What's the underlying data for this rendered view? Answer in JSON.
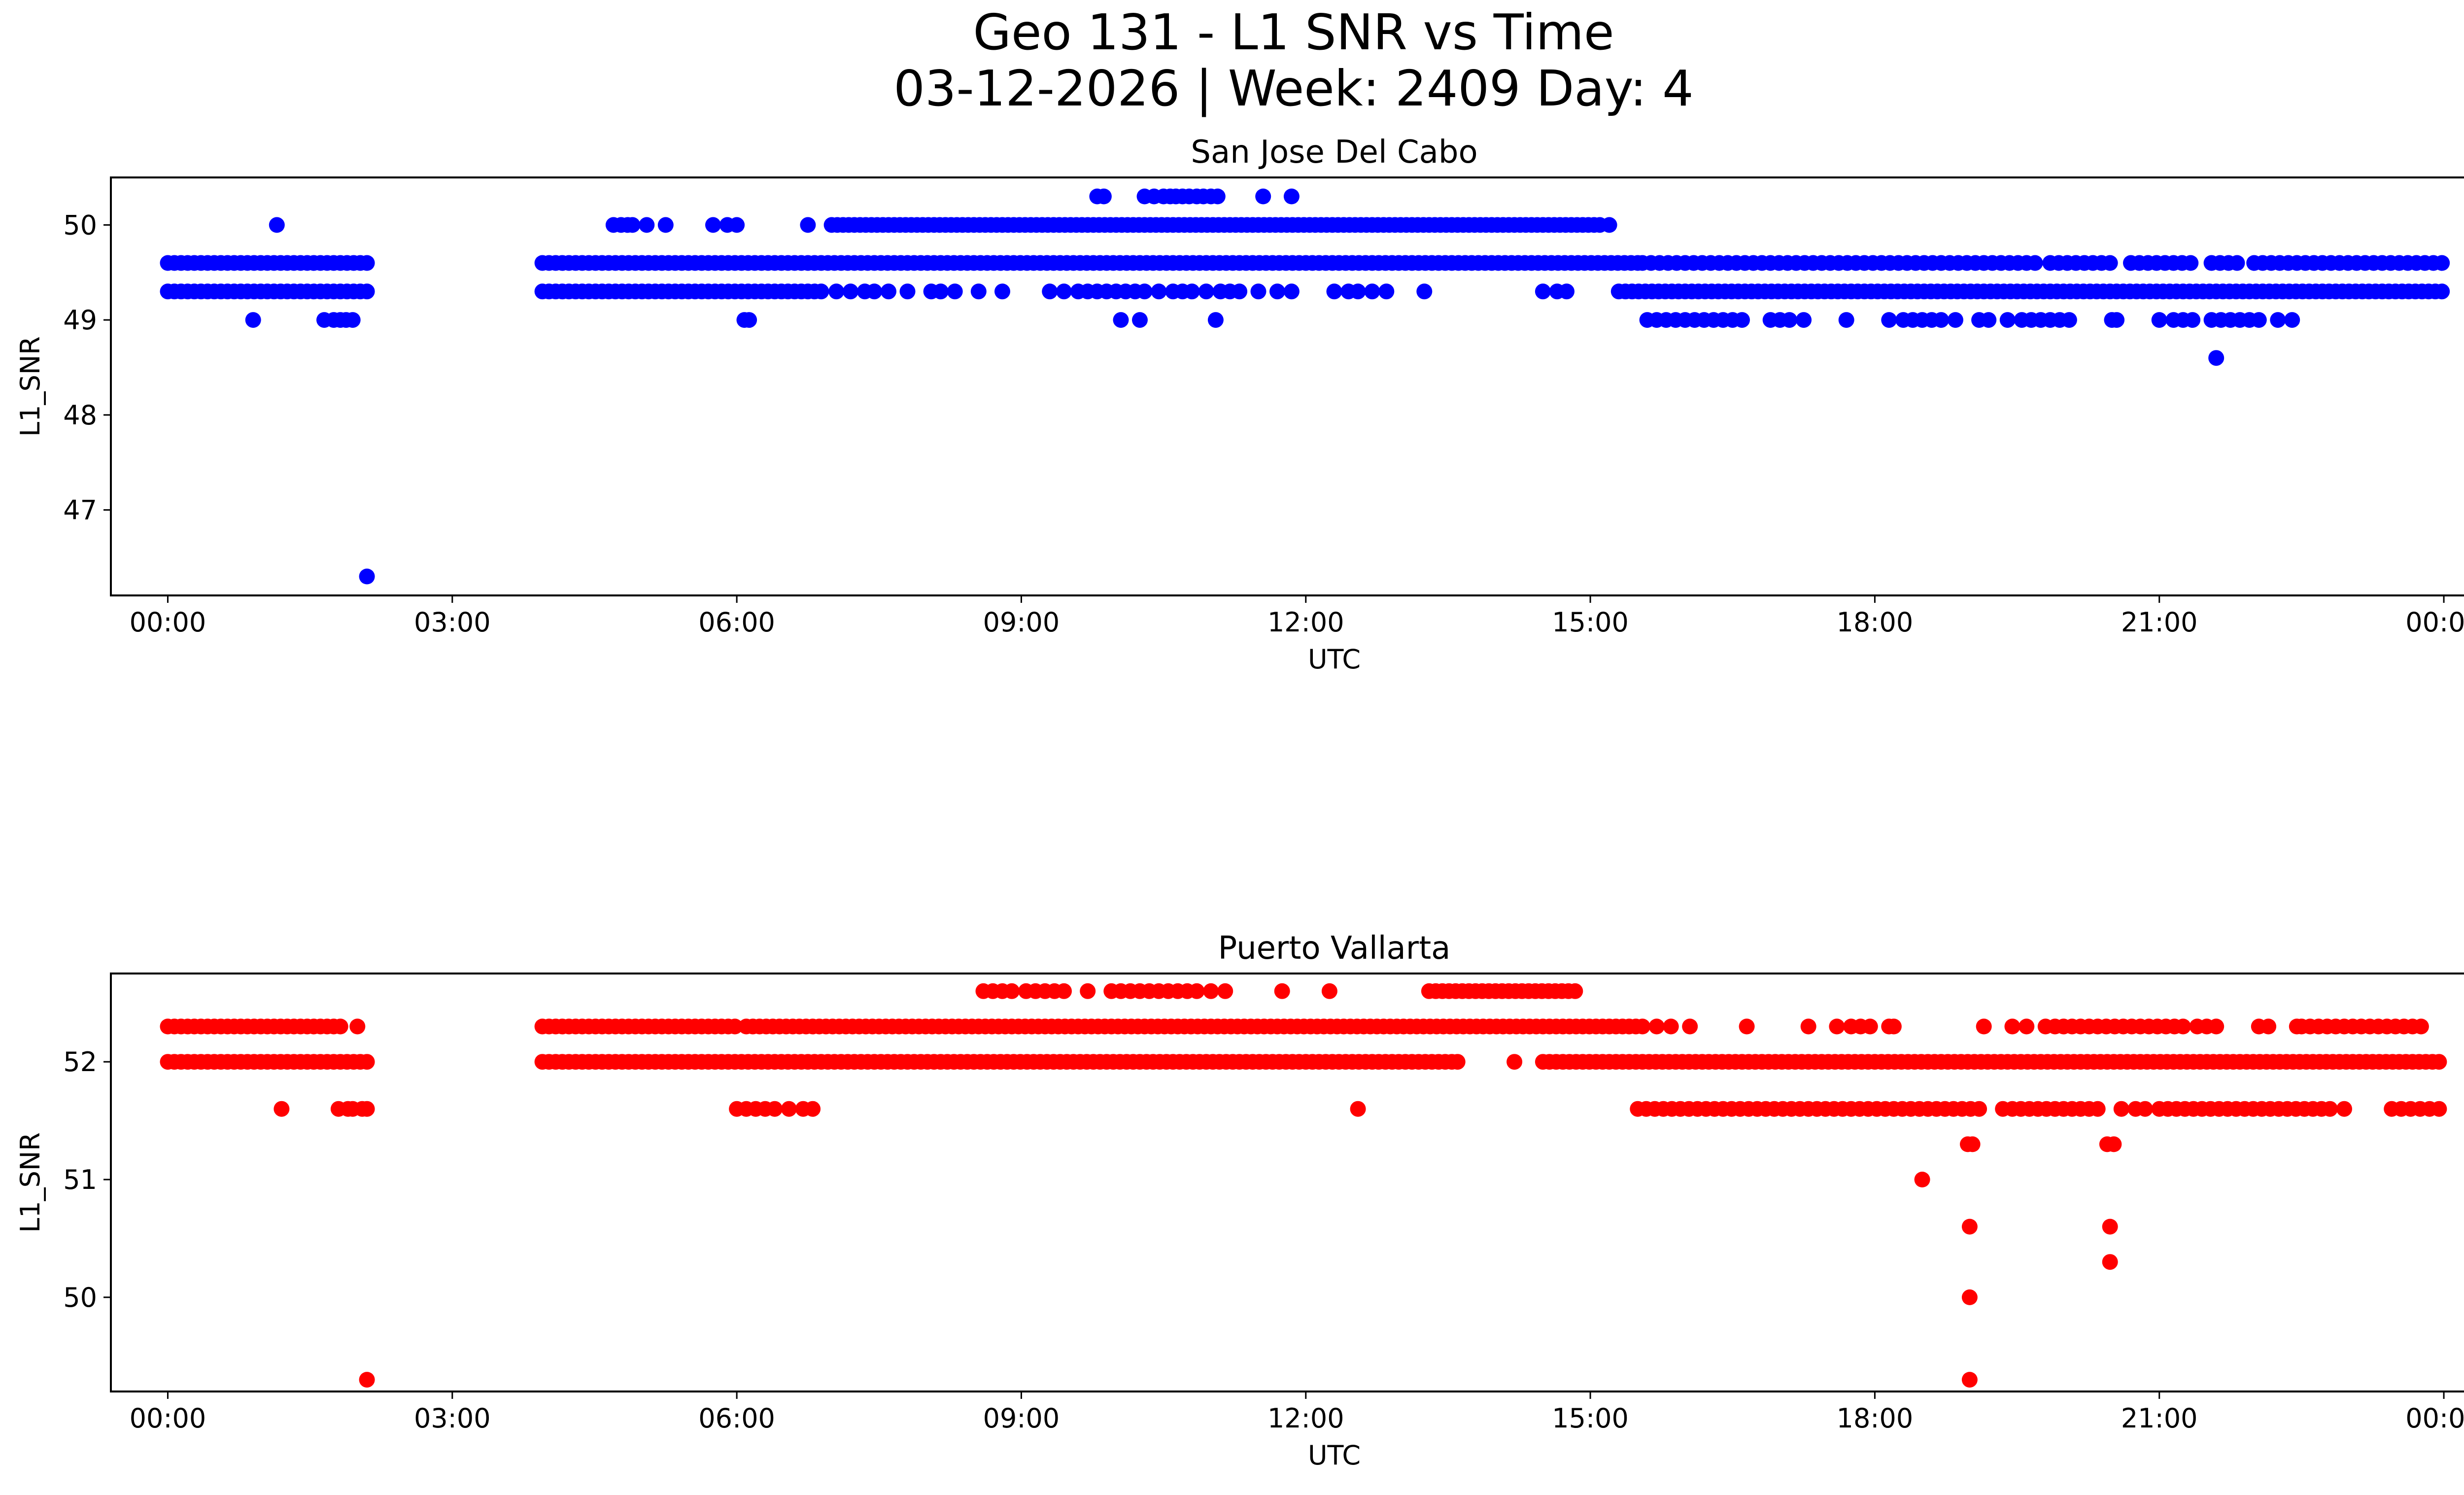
{
  "title": {
    "line1": "Geo 131 - L1 SNR vs Time",
    "line2": "03-12-2026 | Week: 2409 Day: 4"
  },
  "chart_data": [
    {
      "type": "scatter",
      "title": "San Jose Del Cabo",
      "xlabel": "UTC",
      "ylabel": "L1_SNR",
      "color": "#0000ff",
      "xlim": [
        -0.6,
        25.2
      ],
      "ylim": [
        46.1,
        50.5
      ],
      "xticks": [
        0,
        3,
        6,
        9,
        12,
        15,
        18,
        21,
        24
      ],
      "xtick_labels": [
        "00:00",
        "03:00",
        "06:00",
        "09:00",
        "12:00",
        "15:00",
        "18:00",
        "21:00",
        "00:00"
      ],
      "yticks": [
        47,
        48,
        49,
        50
      ],
      "ytick_labels": [
        "47",
        "48",
        "49",
        "50"
      ],
      "bands": [
        {
          "y": 49.6,
          "ranges": [
            [
              0.0,
              2.15
            ],
            [
              3.95,
              15.5
            ]
          ],
          "step": 0.07
        },
        {
          "y": 49.6,
          "ranges": [
            [
              15.55,
              19.7
            ],
            [
              19.85,
              20.5
            ],
            [
              20.7,
              21.4
            ],
            [
              21.55,
              21.85
            ],
            [
              22.0,
              24.0
            ]
          ],
          "step": 0.09
        },
        {
          "y": 49.3,
          "ranges": [
            [
              0.0,
              2.15
            ],
            [
              3.95,
              6.9
            ],
            [
              15.3,
              24.0
            ]
          ],
          "step": 0.07
        },
        {
          "y": 50.0,
          "ranges": [
            [
              7.0,
              15.1
            ]
          ],
          "step": 0.06
        }
      ],
      "points": [
        [
          0.9,
          49.0
        ],
        [
          1.15,
          50.0
        ],
        [
          1.65,
          49.0
        ],
        [
          1.75,
          49.0
        ],
        [
          1.82,
          49.0
        ],
        [
          1.88,
          49.0
        ],
        [
          1.95,
          49.0
        ],
        [
          2.1,
          46.3
        ],
        [
          4.7,
          50.0
        ],
        [
          4.78,
          50.0
        ],
        [
          4.85,
          50.0
        ],
        [
          4.9,
          50.0
        ],
        [
          5.05,
          50.0
        ],
        [
          5.25,
          50.0
        ],
        [
          5.75,
          50.0
        ],
        [
          5.9,
          50.0
        ],
        [
          6.0,
          50.0
        ],
        [
          6.75,
          50.0
        ],
        [
          6.08,
          49.0
        ],
        [
          6.13,
          49.0
        ],
        [
          7.05,
          49.3
        ],
        [
          7.2,
          49.3
        ],
        [
          7.35,
          49.3
        ],
        [
          7.45,
          49.3
        ],
        [
          7.6,
          49.3
        ],
        [
          7.8,
          49.3
        ],
        [
          8.05,
          49.3
        ],
        [
          8.15,
          49.3
        ],
        [
          8.3,
          49.3
        ],
        [
          8.55,
          49.3
        ],
        [
          8.8,
          49.3
        ],
        [
          9.3,
          49.3
        ],
        [
          9.45,
          49.3
        ],
        [
          9.6,
          49.3
        ],
        [
          9.7,
          49.3
        ],
        [
          9.8,
          49.3
        ],
        [
          9.9,
          49.3
        ],
        [
          10.0,
          49.3
        ],
        [
          10.1,
          49.3
        ],
        [
          10.2,
          49.3
        ],
        [
          10.3,
          49.3
        ],
        [
          10.45,
          49.3
        ],
        [
          10.6,
          49.3
        ],
        [
          10.7,
          49.3
        ],
        [
          10.8,
          49.3
        ],
        [
          10.95,
          49.3
        ],
        [
          11.1,
          49.3
        ],
        [
          11.2,
          49.3
        ],
        [
          11.3,
          49.3
        ],
        [
          11.5,
          49.3
        ],
        [
          11.7,
          49.3
        ],
        [
          11.85,
          49.3
        ],
        [
          12.3,
          49.3
        ],
        [
          12.45,
          49.3
        ],
        [
          12.55,
          49.3
        ],
        [
          12.7,
          49.3
        ],
        [
          12.85,
          49.3
        ],
        [
          13.25,
          49.3
        ],
        [
          14.5,
          49.3
        ],
        [
          14.65,
          49.3
        ],
        [
          14.75,
          49.3
        ],
        [
          10.05,
          49.0
        ],
        [
          10.25,
          49.0
        ],
        [
          11.05,
          49.0
        ],
        [
          9.8,
          50.3
        ],
        [
          9.87,
          50.3
        ],
        [
          10.3,
          50.3
        ],
        [
          10.4,
          50.3
        ],
        [
          10.5,
          50.3
        ],
        [
          10.57,
          50.3
        ],
        [
          10.63,
          50.3
        ],
        [
          10.7,
          50.3
        ],
        [
          10.77,
          50.3
        ],
        [
          10.85,
          50.3
        ],
        [
          10.92,
          50.3
        ],
        [
          11.0,
          50.3
        ],
        [
          11.07,
          50.3
        ],
        [
          11.55,
          50.3
        ],
        [
          11.85,
          50.3
        ],
        [
          15.2,
          50.0
        ],
        [
          15.6,
          49.0
        ],
        [
          15.7,
          49.0
        ],
        [
          15.8,
          49.0
        ],
        [
          15.9,
          49.0
        ],
        [
          16.0,
          49.0
        ],
        [
          16.1,
          49.0
        ],
        [
          16.2,
          49.0
        ],
        [
          16.3,
          49.0
        ],
        [
          16.4,
          49.0
        ],
        [
          16.5,
          49.0
        ],
        [
          16.6,
          49.0
        ],
        [
          16.9,
          49.0
        ],
        [
          17.0,
          49.0
        ],
        [
          17.1,
          49.0
        ],
        [
          17.25,
          49.0
        ],
        [
          17.7,
          49.0
        ],
        [
          18.15,
          49.0
        ],
        [
          18.3,
          49.0
        ],
        [
          18.4,
          49.0
        ],
        [
          18.5,
          49.0
        ],
        [
          18.6,
          49.0
        ],
        [
          18.7,
          49.0
        ],
        [
          18.85,
          49.0
        ],
        [
          19.1,
          49.0
        ],
        [
          19.2,
          49.0
        ],
        [
          19.4,
          49.0
        ],
        [
          19.55,
          49.0
        ],
        [
          19.65,
          49.0
        ],
        [
          19.75,
          49.0
        ],
        [
          19.85,
          49.0
        ],
        [
          19.95,
          49.0
        ],
        [
          20.05,
          49.0
        ],
        [
          20.5,
          49.0
        ],
        [
          20.55,
          49.0
        ],
        [
          21.0,
          49.0
        ],
        [
          21.15,
          49.0
        ],
        [
          21.25,
          49.0
        ],
        [
          21.35,
          49.0
        ],
        [
          21.55,
          49.0
        ],
        [
          21.65,
          49.0
        ],
        [
          21.75,
          49.0
        ],
        [
          21.85,
          49.0
        ],
        [
          21.95,
          49.0
        ],
        [
          22.05,
          49.0
        ],
        [
          22.25,
          49.0
        ],
        [
          22.4,
          49.0
        ],
        [
          21.6,
          48.6
        ]
      ]
    },
    {
      "type": "scatter",
      "title": "Puerto Vallarta",
      "xlabel": "UTC",
      "ylabel": "L1_SNR",
      "color": "#ff0000",
      "xlim": [
        -0.6,
        25.2
      ],
      "ylim": [
        49.2,
        52.75
      ],
      "xticks": [
        0,
        3,
        6,
        9,
        12,
        15,
        18,
        21,
        24
      ],
      "xtick_labels": [
        "00:00",
        "03:00",
        "06:00",
        "09:00",
        "12:00",
        "15:00",
        "18:00",
        "21:00",
        "00:00"
      ],
      "yticks": [
        50,
        51,
        52
      ],
      "ytick_labels": [
        "50",
        "51",
        "52"
      ],
      "bands": [
        {
          "y": 52.3,
          "ranges": [
            [
              0.0,
              1.85
            ],
            [
              3.95,
              6.0
            ],
            [
              6.1,
              15.6
            ]
          ],
          "step": 0.07
        },
        {
          "y": 52.3,
          "ranges": [
            [
              19.9,
              21.3
            ],
            [
              22.5,
              23.8
            ]
          ],
          "step": 0.09
        },
        {
          "y": 52.0,
          "ranges": [
            [
              0.0,
              2.15
            ],
            [
              3.95,
              13.6
            ],
            [
              14.5,
              24.0
            ]
          ],
          "step": 0.07
        },
        {
          "y": 51.6,
          "ranges": [
            [
              15.5,
              19.15
            ],
            [
              19.45,
              20.4
            ],
            [
              21.0,
              22.8
            ]
          ],
          "step": 0.09
        },
        {
          "y": 52.6,
          "ranges": [
            [
              13.3,
              14.9
            ]
          ],
          "step": 0.07
        }
      ],
      "points": [
        [
          2.0,
          52.3
        ],
        [
          1.2,
          51.6
        ],
        [
          1.8,
          51.6
        ],
        [
          1.9,
          51.6
        ],
        [
          1.95,
          51.6
        ],
        [
          2.05,
          51.6
        ],
        [
          2.1,
          51.6
        ],
        [
          2.1,
          49.3
        ],
        [
          6.0,
          51.6
        ],
        [
          6.1,
          51.6
        ],
        [
          6.2,
          51.6
        ],
        [
          6.3,
          51.6
        ],
        [
          6.4,
          51.6
        ],
        [
          6.55,
          51.6
        ],
        [
          6.7,
          51.6
        ],
        [
          6.8,
          51.6
        ],
        [
          8.6,
          52.6
        ],
        [
          8.7,
          52.6
        ],
        [
          8.8,
          52.6
        ],
        [
          8.9,
          52.6
        ],
        [
          9.05,
          52.6
        ],
        [
          9.15,
          52.6
        ],
        [
          9.25,
          52.6
        ],
        [
          9.35,
          52.6
        ],
        [
          9.45,
          52.6
        ],
        [
          9.7,
          52.6
        ],
        [
          9.95,
          52.6
        ],
        [
          10.05,
          52.6
        ],
        [
          10.15,
          52.6
        ],
        [
          10.25,
          52.6
        ],
        [
          10.35,
          52.6
        ],
        [
          10.45,
          52.6
        ],
        [
          10.55,
          52.6
        ],
        [
          10.65,
          52.6
        ],
        [
          10.75,
          52.6
        ],
        [
          10.85,
          52.6
        ],
        [
          11.0,
          52.6
        ],
        [
          11.15,
          52.6
        ],
        [
          11.75,
          52.6
        ],
        [
          12.25,
          52.6
        ],
        [
          12.55,
          51.6
        ],
        [
          13.6,
          52.0
        ],
        [
          14.2,
          52.0
        ],
        [
          15.7,
          52.3
        ],
        [
          15.85,
          52.3
        ],
        [
          16.05,
          52.3
        ],
        [
          16.65,
          52.3
        ],
        [
          17.3,
          52.3
        ],
        [
          17.6,
          52.3
        ],
        [
          17.75,
          52.3
        ],
        [
          17.85,
          52.3
        ],
        [
          17.95,
          52.3
        ],
        [
          18.15,
          52.3
        ],
        [
          18.2,
          52.3
        ],
        [
          19.15,
          52.3
        ],
        [
          19.45,
          52.3
        ],
        [
          19.6,
          52.3
        ],
        [
          19.8,
          52.3
        ],
        [
          21.4,
          52.3
        ],
        [
          21.5,
          52.3
        ],
        [
          21.6,
          52.3
        ],
        [
          22.05,
          52.3
        ],
        [
          22.15,
          52.3
        ],
        [
          22.45,
          52.3
        ],
        [
          19.35,
          51.6
        ],
        [
          20.6,
          51.6
        ],
        [
          20.75,
          51.6
        ],
        [
          20.85,
          51.6
        ],
        [
          22.95,
          51.6
        ],
        [
          23.45,
          51.6
        ],
        [
          23.55,
          51.6
        ],
        [
          23.65,
          51.6
        ],
        [
          23.75,
          51.6
        ],
        [
          23.85,
          51.6
        ],
        [
          23.95,
          51.6
        ],
        [
          18.5,
          51.0
        ],
        [
          18.98,
          51.3
        ],
        [
          19.03,
          51.3
        ],
        [
          19.0,
          50.6
        ],
        [
          19.0,
          50.0
        ],
        [
          19.0,
          49.3
        ],
        [
          20.45,
          51.3
        ],
        [
          20.52,
          51.3
        ],
        [
          20.48,
          50.6
        ],
        [
          20.48,
          50.3
        ]
      ]
    }
  ]
}
